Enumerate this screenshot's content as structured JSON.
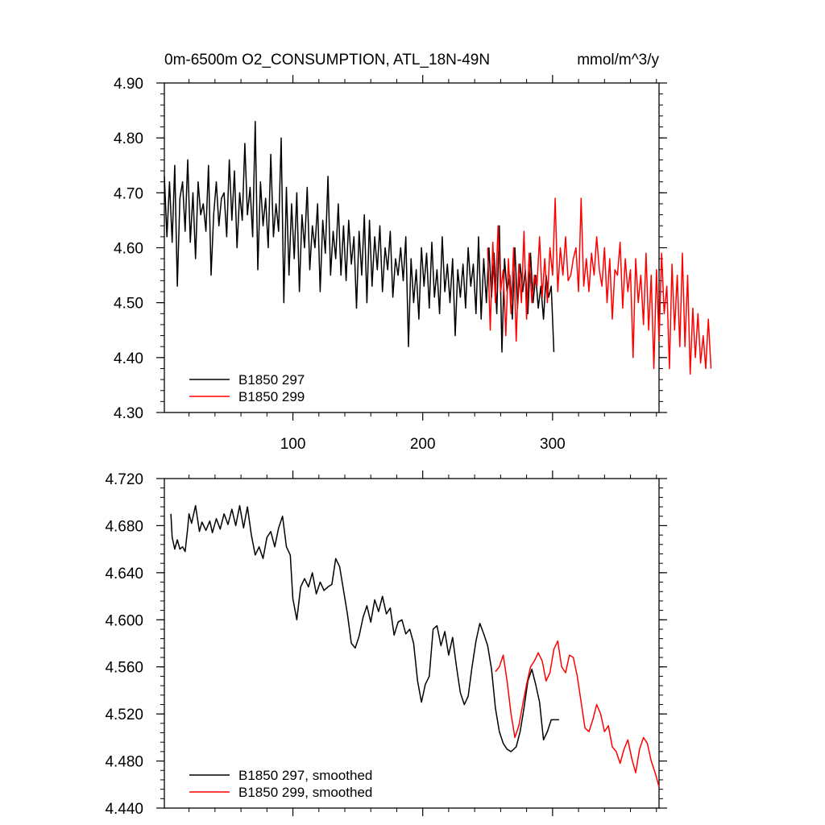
{
  "figure": {
    "title_left": "0m-6500m O2_CONSUMPTION, ATL_18N-49N",
    "title_right": "mmol/m^3/y"
  },
  "chart_data": [
    {
      "type": "line",
      "panel": "top",
      "title": "0m-6500m O2_CONSUMPTION, ATL_18N-49N",
      "units": "mmol/m^3/y",
      "xlabel": "",
      "ylabel": "",
      "xlim": [
        1,
        382
      ],
      "ylim": [
        4.3,
        4.9
      ],
      "x_ticks": [
        100,
        200,
        300
      ],
      "y_ticks": [
        4.3,
        4.4,
        4.5,
        4.6,
        4.7,
        4.8,
        4.9
      ],
      "y_tick_labels": [
        "4.30",
        "4.40",
        "4.50",
        "4.60",
        "4.70",
        "4.80",
        "4.90"
      ],
      "legend_position": "bottom-left",
      "series": [
        {
          "name": "B1850 297",
          "color": "#000000",
          "x_start": 1,
          "x_step": 2,
          "values": [
            4.73,
            4.62,
            4.72,
            4.61,
            4.75,
            4.53,
            4.69,
            4.72,
            4.63,
            4.76,
            4.61,
            4.7,
            4.58,
            4.72,
            4.66,
            4.68,
            4.63,
            4.75,
            4.55,
            4.66,
            4.72,
            4.64,
            4.69,
            4.7,
            4.62,
            4.76,
            4.65,
            4.74,
            4.6,
            4.7,
            4.65,
            4.79,
            4.66,
            4.71,
            4.62,
            4.83,
            4.56,
            4.72,
            4.64,
            4.69,
            4.6,
            4.77,
            4.62,
            4.68,
            4.63,
            4.8,
            4.5,
            4.71,
            4.55,
            4.68,
            4.58,
            4.7,
            4.52,
            4.66,
            4.6,
            4.71,
            4.56,
            4.64,
            4.6,
            4.68,
            4.52,
            4.65,
            4.59,
            4.73,
            4.55,
            4.63,
            4.58,
            4.68,
            4.55,
            4.64,
            4.54,
            4.65,
            4.57,
            4.62,
            4.49,
            4.63,
            4.55,
            4.66,
            4.5,
            4.65,
            4.53,
            4.62,
            4.56,
            4.64,
            4.52,
            4.6,
            4.56,
            4.63,
            4.51,
            4.58,
            4.55,
            4.6,
            4.54,
            4.62,
            4.42,
            4.58,
            4.5,
            4.56,
            4.47,
            4.6,
            4.53,
            4.59,
            4.49,
            4.61,
            4.51,
            4.56,
            4.48,
            4.62,
            4.52,
            4.57,
            4.5,
            4.58,
            4.44,
            4.56,
            4.51,
            4.57,
            4.49,
            4.6,
            4.53,
            4.57,
            4.48,
            4.62,
            4.47,
            4.58,
            4.5,
            4.6,
            4.51,
            4.59,
            4.48,
            4.64,
            4.41,
            4.58,
            4.52,
            4.55,
            4.47,
            4.6,
            4.49,
            4.57,
            4.52,
            4.56,
            4.48,
            4.59,
            4.5,
            4.55,
            4.49,
            4.53,
            4.47,
            4.55,
            4.51,
            4.53,
            4.41
          ]
        },
        {
          "name": "B1850 299",
          "color": "#ff0000",
          "x_start": 250,
          "x_step": 2,
          "values": [
            4.6,
            4.45,
            4.61,
            4.5,
            4.64,
            4.52,
            4.56,
            4.44,
            4.58,
            4.48,
            4.6,
            4.43,
            4.57,
            4.5,
            4.63,
            4.47,
            4.59,
            4.5,
            4.55,
            4.53,
            4.62,
            4.51,
            4.58,
            4.5,
            4.6,
            4.55,
            4.69,
            4.52,
            4.6,
            4.55,
            4.62,
            4.54,
            4.55,
            4.58,
            4.6,
            4.52,
            4.69,
            4.53,
            4.58,
            4.52,
            4.59,
            4.55,
            4.62,
            4.56,
            4.53,
            4.6,
            4.5,
            4.58,
            4.47,
            4.56,
            4.55,
            4.61,
            4.49,
            4.58,
            4.52,
            4.56,
            4.4,
            4.58,
            4.5,
            4.55,
            4.46,
            4.59,
            4.45,
            4.55,
            4.38,
            4.56,
            4.43,
            4.59,
            4.48,
            4.53,
            4.38,
            4.57,
            4.45,
            4.55,
            4.42,
            4.59,
            4.42,
            4.55,
            4.37,
            4.49,
            4.4,
            4.48,
            4.39,
            4.44,
            4.38,
            4.47,
            4.38
          ]
        }
      ]
    },
    {
      "type": "line",
      "panel": "bottom",
      "title": "",
      "xlabel": "",
      "ylabel": "",
      "xlim": [
        1,
        382
      ],
      "ylim": [
        4.44,
        4.72
      ],
      "x_ticks": [
        100,
        200,
        300
      ],
      "y_ticks": [
        4.44,
        4.48,
        4.52,
        4.56,
        4.6,
        4.64,
        4.68,
        4.72
      ],
      "y_tick_labels": [
        "4.440",
        "4.480",
        "4.520",
        "4.560",
        "4.600",
        "4.640",
        "4.680",
        "4.720"
      ],
      "legend_position": "bottom-left",
      "series": [
        {
          "name": "B1850 297, smoothed",
          "color": "#000000",
          "x": [
            6,
            7,
            9,
            11,
            13,
            15,
            17,
            19,
            20,
            22,
            25,
            28,
            30,
            33,
            36,
            38,
            41,
            44,
            47,
            50,
            53,
            56,
            59,
            62,
            65,
            68,
            71,
            74,
            77,
            80,
            83,
            86,
            89,
            92,
            95,
            98,
            100,
            103,
            106,
            109,
            112,
            115,
            118,
            121,
            124,
            127,
            130,
            133,
            136,
            139,
            142,
            145,
            148,
            151,
            154,
            157,
            160,
            163,
            166,
            169,
            172,
            175,
            178,
            181,
            184,
            187,
            190,
            193,
            196,
            199,
            202,
            205,
            208,
            211,
            214,
            217,
            220,
            223,
            226,
            229,
            232,
            235,
            238,
            241,
            244,
            247,
            250,
            253,
            256,
            259,
            262,
            265,
            268,
            270,
            272,
            275,
            278,
            281,
            284,
            287,
            290,
            293,
            296,
            299,
            302,
            305
          ],
          "values": [
            4.69,
            4.67,
            4.66,
            4.668,
            4.66,
            4.662,
            4.658,
            4.678,
            4.69,
            4.682,
            4.697,
            4.675,
            4.683,
            4.676,
            4.684,
            4.674,
            4.686,
            4.677,
            4.69,
            4.681,
            4.694,
            4.68,
            4.697,
            4.678,
            4.696,
            4.672,
            4.655,
            4.662,
            4.652,
            4.67,
            4.675,
            4.662,
            4.678,
            4.688,
            4.662,
            4.655,
            4.618,
            4.6,
            4.628,
            4.635,
            4.628,
            4.64,
            4.622,
            4.632,
            4.625,
            4.628,
            4.63,
            4.652,
            4.645,
            4.625,
            4.605,
            4.58,
            4.576,
            4.586,
            4.602,
            4.612,
            4.598,
            4.617,
            4.607,
            4.62,
            4.605,
            4.61,
            4.587,
            4.598,
            4.6,
            4.588,
            4.592,
            4.58,
            4.548,
            4.53,
            4.545,
            4.552,
            4.592,
            4.595,
            4.578,
            4.59,
            4.57,
            4.585,
            4.56,
            4.538,
            4.528,
            4.535,
            4.56,
            4.582,
            4.597,
            4.588,
            4.578,
            4.558,
            4.525,
            4.505,
            4.495,
            4.49,
            4.488,
            4.49,
            4.492,
            4.505,
            4.525,
            4.548,
            4.558,
            4.545,
            4.53,
            4.498,
            4.505,
            4.515,
            4.515,
            4.515
          ]
        },
        {
          "name": "B1850 299, smoothed",
          "color": "#ff0000",
          "x": [
            256,
            259,
            262,
            265,
            268,
            271,
            274,
            277,
            280,
            283,
            286,
            289,
            292,
            295,
            298,
            301,
            304,
            307,
            310,
            313,
            316,
            319,
            322,
            325,
            328,
            331,
            334,
            337,
            340,
            343,
            346,
            349,
            352,
            355,
            358,
            361,
            364,
            367,
            370,
            373,
            376,
            379,
            382
          ],
          "values": [
            4.556,
            4.56,
            4.57,
            4.548,
            4.52,
            4.5,
            4.51,
            4.528,
            4.545,
            4.56,
            4.565,
            4.572,
            4.565,
            4.548,
            4.555,
            4.575,
            4.582,
            4.56,
            4.555,
            4.57,
            4.568,
            4.552,
            4.53,
            4.508,
            4.505,
            4.515,
            4.528,
            4.52,
            4.505,
            4.51,
            4.492,
            4.488,
            4.478,
            4.49,
            4.498,
            4.482,
            4.47,
            4.49,
            4.5,
            4.495,
            4.48,
            4.47,
            4.458
          ]
        }
      ]
    }
  ]
}
